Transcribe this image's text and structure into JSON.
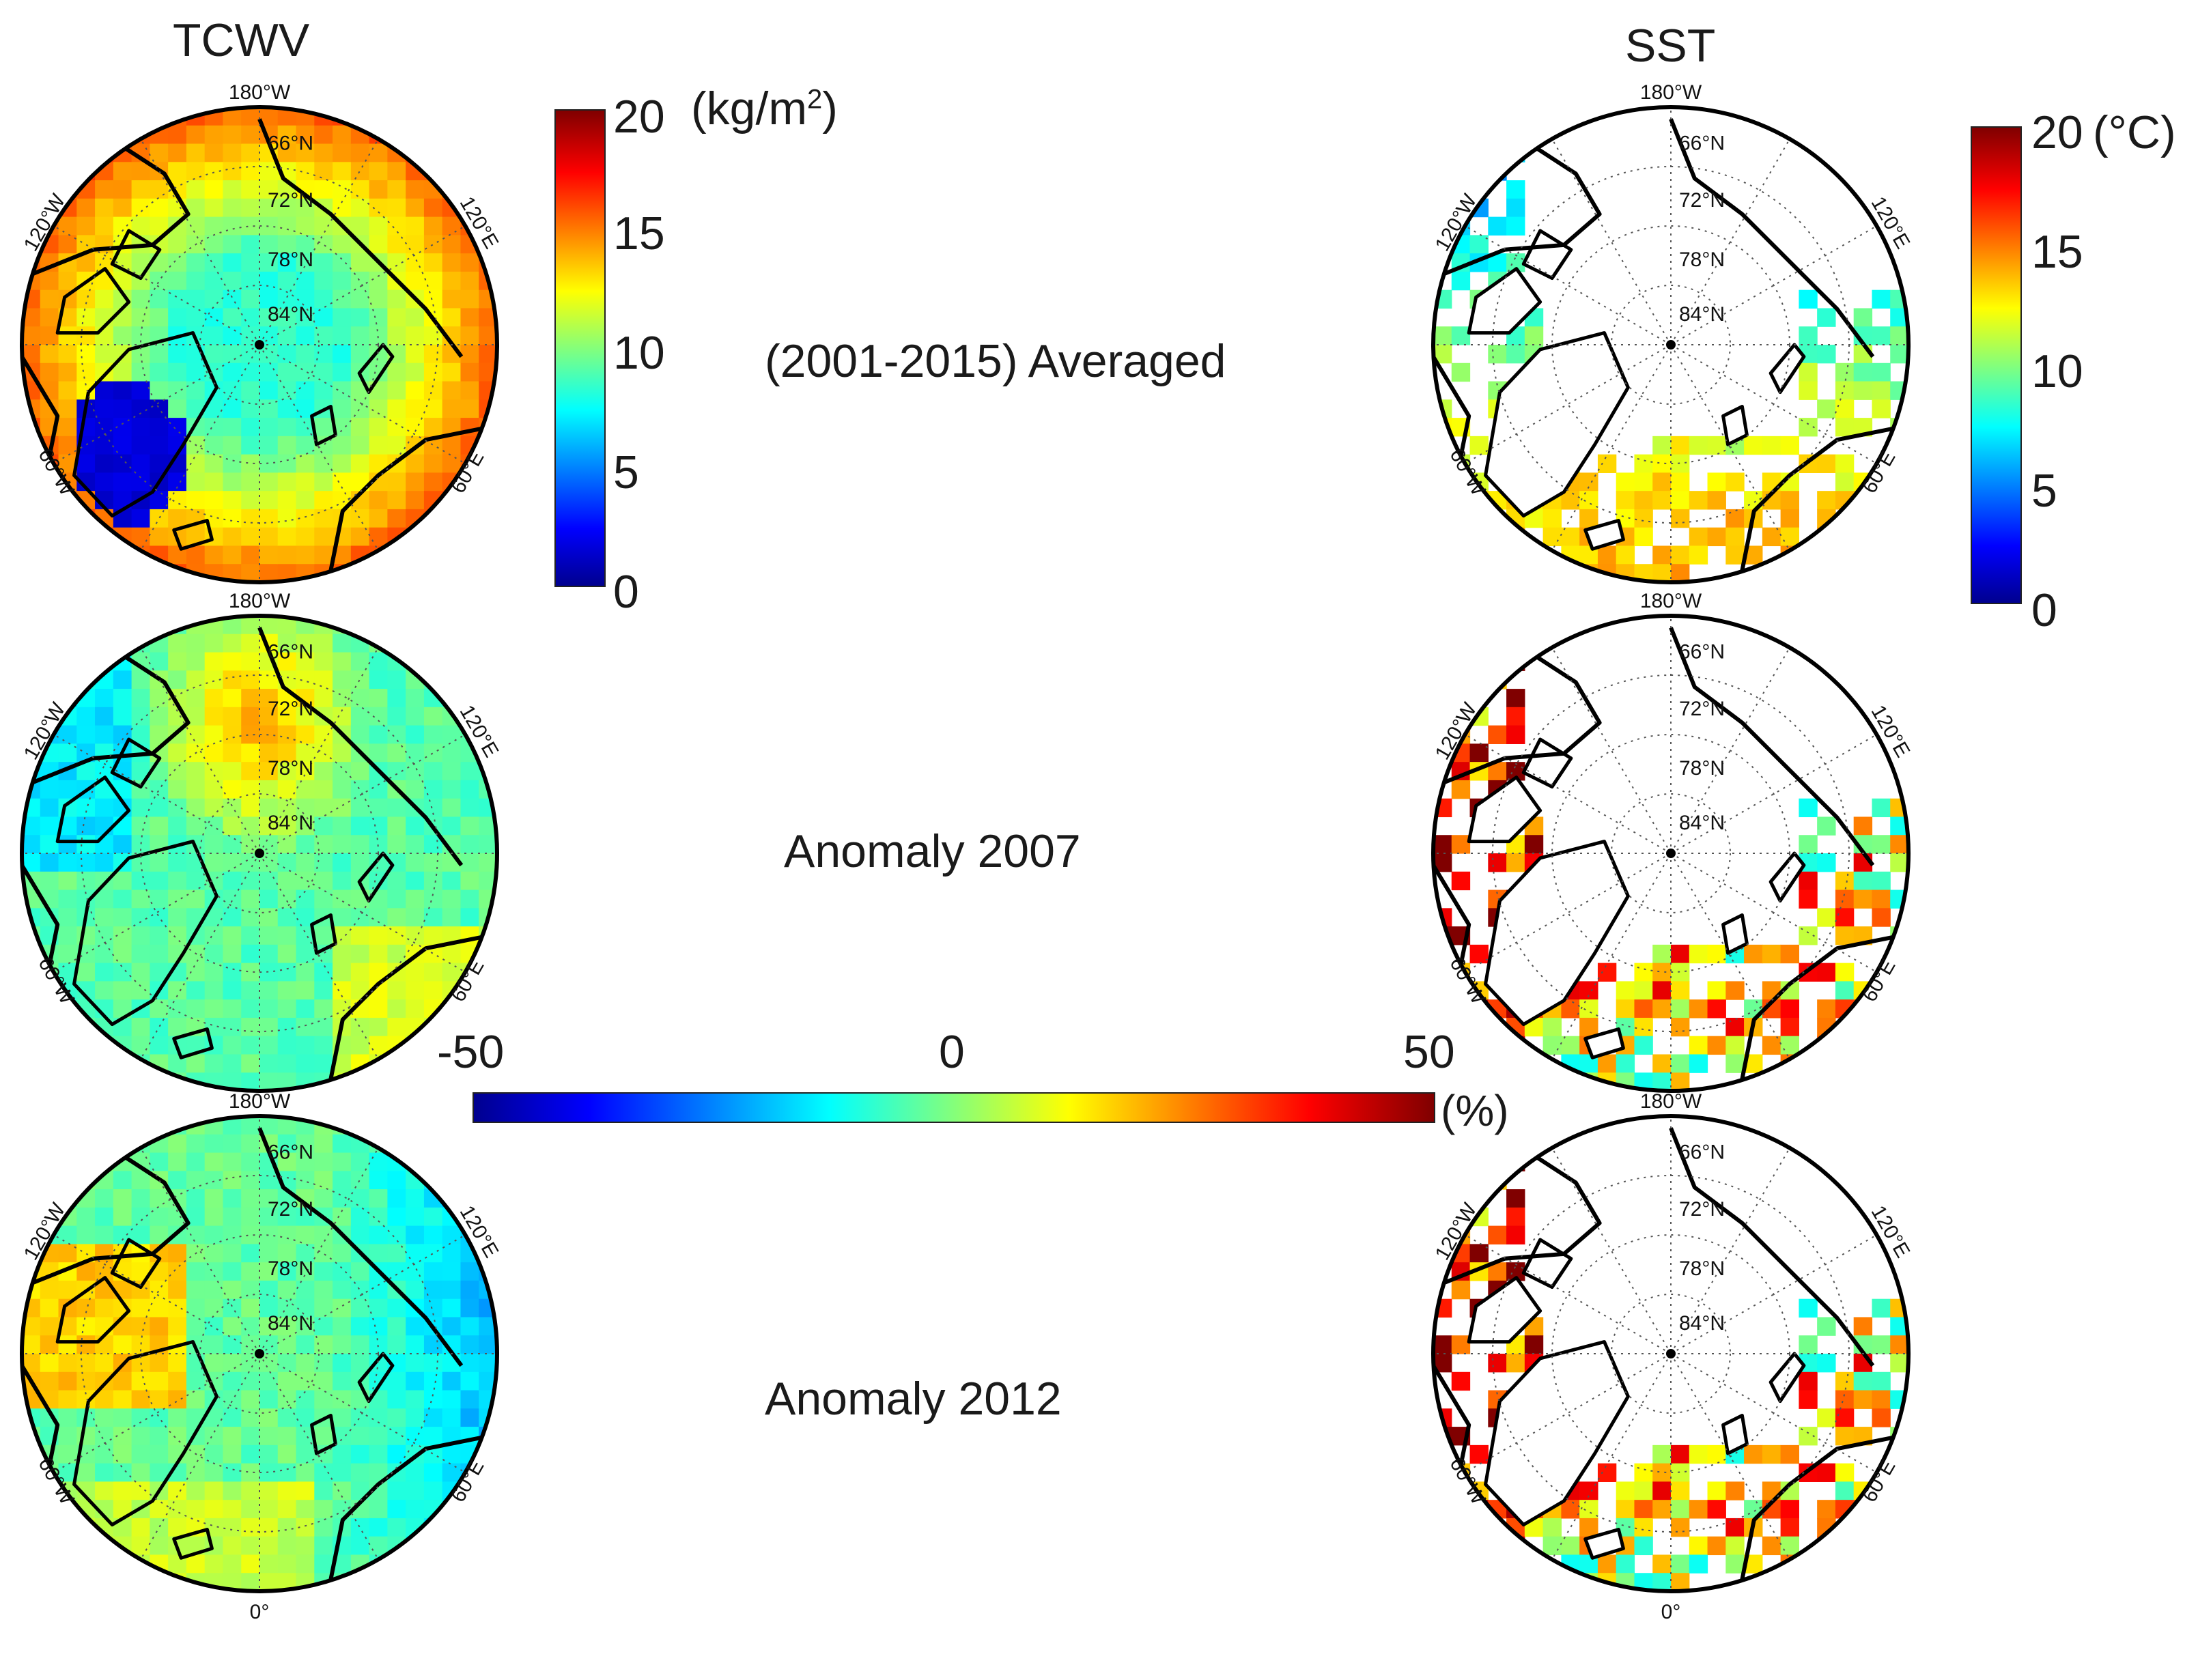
{
  "figure": {
    "tcwv_title": "TCWV",
    "sst_title": "SST",
    "row_labels": [
      "(2001-2015) Averaged",
      "Anomaly  2007",
      "Anomaly  2012"
    ]
  },
  "map_labels": {
    "top": "180°W",
    "bottom": "0°",
    "upper_left": "120°W",
    "lower_left": "60°W",
    "upper_right": "120°E",
    "lower_right": "60°E",
    "lat_labels": [
      "66°N",
      "72°N",
      "78°N",
      "84°N"
    ]
  },
  "tcwv_colorbar": {
    "unit_prefix": "(kg/m",
    "unit_sup": "2",
    "unit_suffix": ")",
    "ticks": [
      "20",
      "15",
      "10",
      "5",
      "0"
    ]
  },
  "sst_colorbar": {
    "unit": "(°C)",
    "ticks": [
      "20",
      "15",
      "10",
      "5",
      "0"
    ]
  },
  "anomaly_colorbar": {
    "min": "-50",
    "mid": "0",
    "max": "50",
    "unit": "(%)"
  },
  "colors": {
    "jet_stops": [
      "#00008f",
      "#0000ff",
      "#00ffff",
      "#ffff00",
      "#ff0000",
      "#800000"
    ],
    "coast": "#000000",
    "grid": "#555555"
  }
}
